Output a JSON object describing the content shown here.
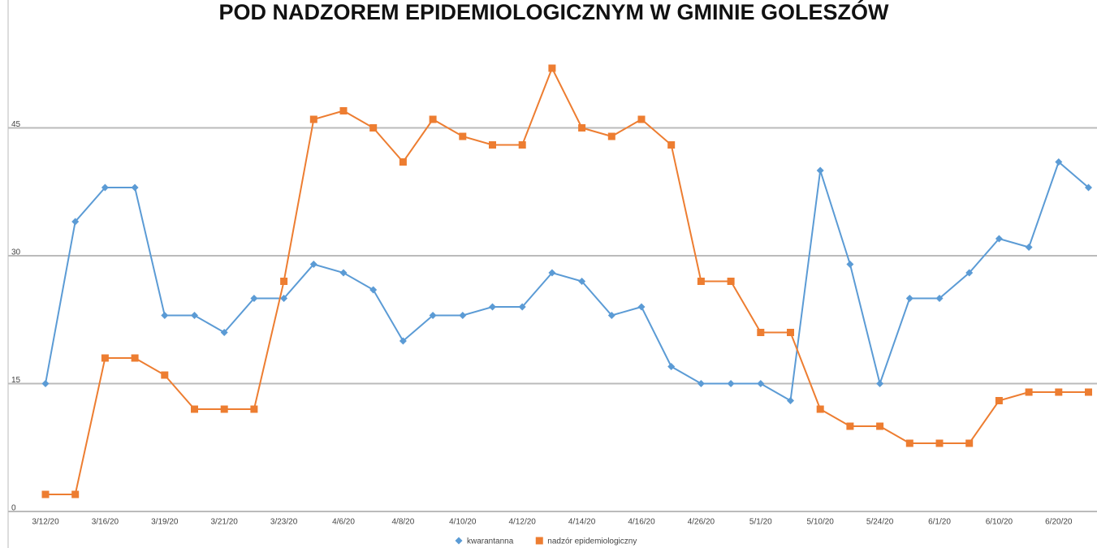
{
  "chart_data": {
    "type": "line",
    "title": "POD NADZOREM EPIDEMIOLOGICZNYM W GMINIE GOLESZÓW",
    "categories": [
      "3/12/20",
      null,
      "3/16/20",
      null,
      "3/19/20",
      null,
      "3/21/20",
      null,
      "3/23/20",
      null,
      "4/6/20",
      null,
      "4/8/20",
      null,
      "4/10/20",
      null,
      "4/12/20",
      null,
      "4/14/20",
      null,
      "4/16/20",
      null,
      "4/26/20",
      null,
      "5/1/20",
      null,
      "5/10/20",
      null,
      "5/24/20",
      null,
      "6/1/20",
      null,
      "6/10/20",
      null,
      "6/20/20",
      null
    ],
    "series": [
      {
        "name": "kwarantanna",
        "color": "#5b9bd5",
        "marker": "diamond",
        "values": [
          15,
          34,
          38,
          38,
          23,
          23,
          21,
          25,
          25,
          29,
          28,
          26,
          20,
          23,
          23,
          24,
          24,
          28,
          27,
          23,
          24,
          17,
          15,
          15,
          15,
          13,
          40,
          29,
          15,
          25,
          25,
          28,
          32,
          31,
          41,
          38
        ]
      },
      {
        "name": "nadzór epidemiologiczny",
        "color": "#ed7d31",
        "marker": "square",
        "values": [
          2,
          2,
          18,
          18,
          16,
          12,
          12,
          12,
          27,
          46,
          47,
          45,
          41,
          46,
          44,
          43,
          43,
          52,
          45,
          44,
          46,
          43,
          27,
          27,
          21,
          21,
          12,
          10,
          10,
          8,
          8,
          8,
          13,
          14,
          14,
          14
        ]
      }
    ],
    "ylim": [
      0,
      60
    ],
    "yticks": [
      0,
      15,
      30,
      45
    ],
    "grid": true,
    "legend": "bottom"
  }
}
